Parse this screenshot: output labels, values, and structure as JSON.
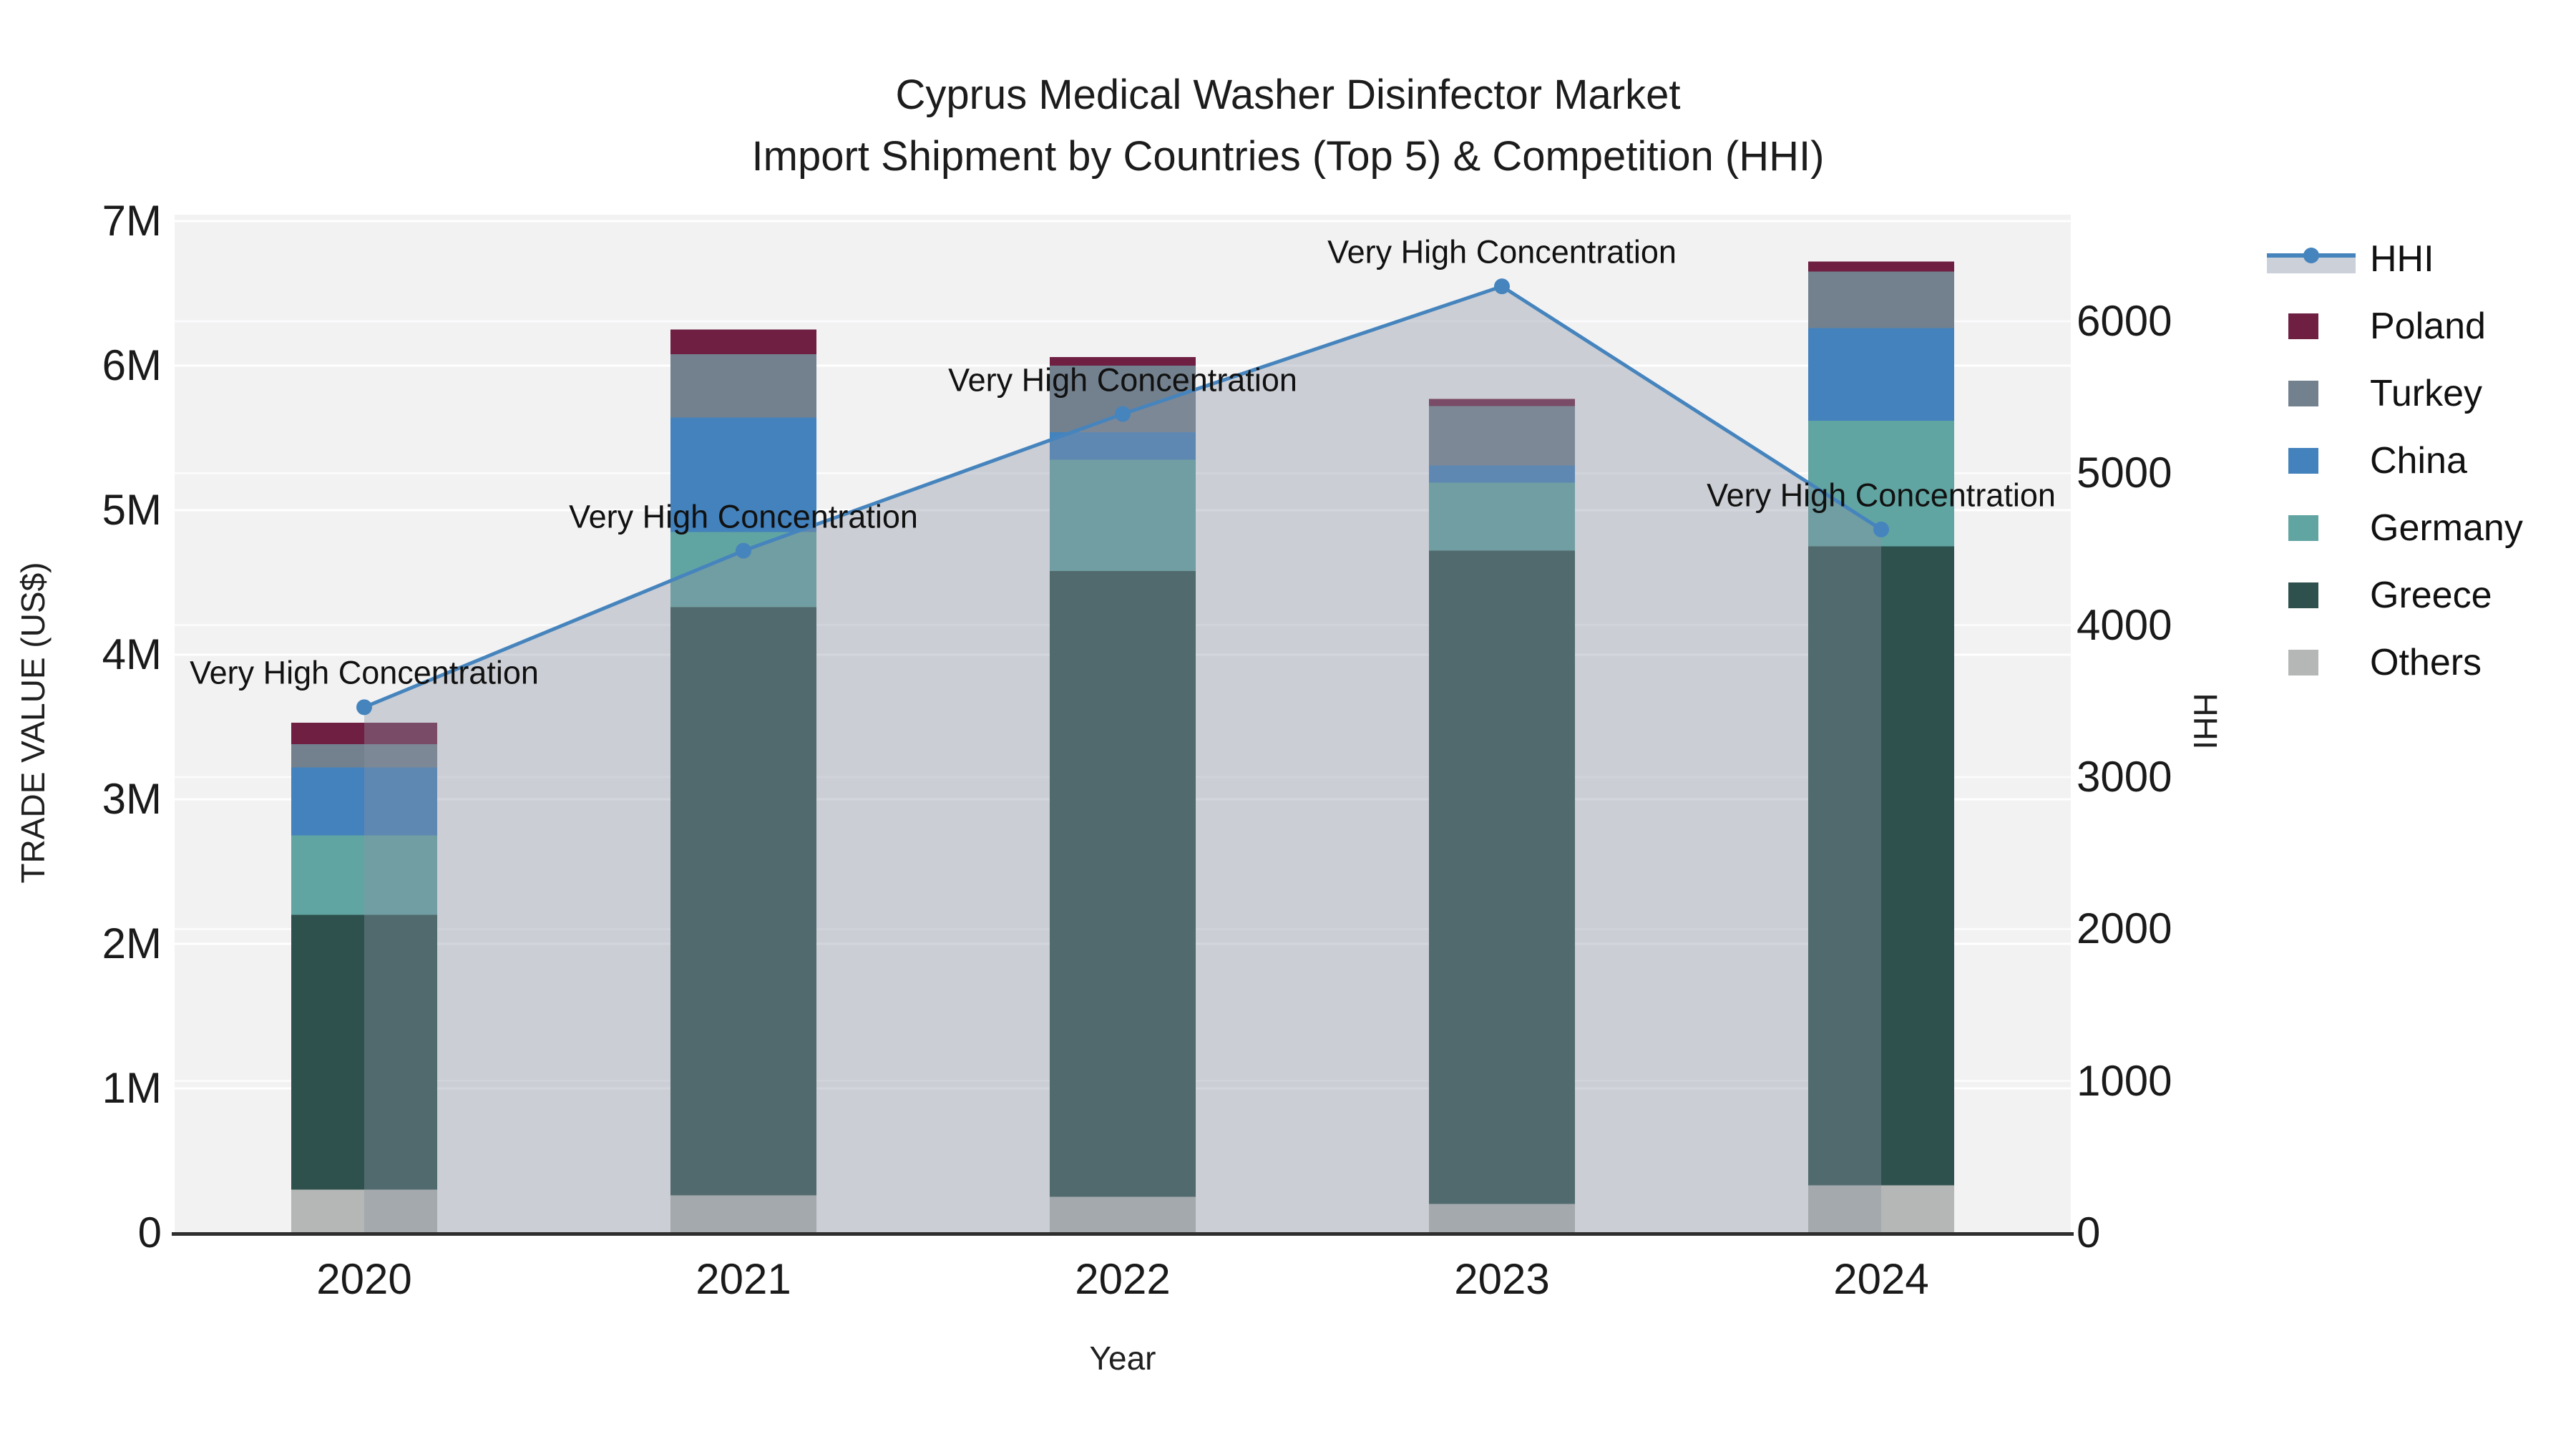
{
  "title": {
    "line1": "Cyprus Medical Washer Disinfector Market",
    "line2": "Import Shipment by Countries (Top 5) & Competition (HHI)"
  },
  "chart_data": {
    "type": "bar+line",
    "stacked": true,
    "title": "Cyprus Medical Washer Disinfector Market — Import Shipment by Countries (Top 5) & Competition (HHI)",
    "categories": [
      "2020",
      "2021",
      "2022",
      "2023",
      "2024"
    ],
    "value_unit": "US$ millions (left axis), HHI index (right axis)",
    "series": [
      {
        "name": "Others",
        "color": "#b4b7b5",
        "values": [
          0.3,
          0.26,
          0.25,
          0.2,
          0.33
        ]
      },
      {
        "name": "Greece",
        "color": "#2e514d",
        "values": [
          1.9,
          4.07,
          4.33,
          4.52,
          4.42
        ]
      },
      {
        "name": "Germany",
        "color": "#61a5a2",
        "values": [
          0.55,
          0.52,
          0.77,
          0.47,
          0.87
        ]
      },
      {
        "name": "China",
        "color": "#4382bc",
        "values": [
          0.47,
          0.79,
          0.19,
          0.12,
          0.64
        ]
      },
      {
        "name": "Turkey",
        "color": "#73818f",
        "values": [
          0.16,
          0.44,
          0.46,
          0.41,
          0.39
        ]
      },
      {
        "name": "Poland",
        "color": "#6e1f42",
        "values": [
          0.15,
          0.17,
          0.06,
          0.05,
          0.07
        ]
      }
    ],
    "bar_totals": [
      3.53,
      6.25,
      6.06,
      5.77,
      6.72
    ],
    "line_series": {
      "name": "HHI",
      "axis": "right",
      "color": "#4684bd",
      "values": [
        3460,
        4490,
        5390,
        6230,
        4630
      ],
      "area_fill": "rgba(139,147,162,0.38)",
      "annotation": "Very High Concentration"
    },
    "y_left": {
      "title": "TRADE VALUE (US$)",
      "ticks": [
        "0",
        "1M",
        "2M",
        "3M",
        "4M",
        "5M",
        "6M",
        "7M"
      ],
      "tick_values": [
        0,
        1,
        2,
        3,
        4,
        5,
        6,
        7
      ],
      "range": [
        0,
        7.05
      ]
    },
    "y_right": {
      "title": "HHI",
      "ticks": [
        "0",
        "1000",
        "2000",
        "3000",
        "4000",
        "5000",
        "6000"
      ],
      "tick_values": [
        0,
        1000,
        2000,
        3000,
        4000,
        5000,
        6000
      ],
      "range": [
        0,
        6700
      ]
    },
    "x": {
      "title": "Year"
    },
    "grid": true,
    "legend_position": "top-right"
  },
  "legend": {
    "items": [
      {
        "label": "HHI",
        "type": "line",
        "color": "#4684bd"
      },
      {
        "label": "Poland",
        "type": "swatch",
        "color": "#6e1f42"
      },
      {
        "label": "Turkey",
        "type": "swatch",
        "color": "#73818f"
      },
      {
        "label": "China",
        "type": "swatch",
        "color": "#4382bc"
      },
      {
        "label": "Germany",
        "type": "swatch",
        "color": "#61a5a2"
      },
      {
        "label": "Greece",
        "type": "swatch",
        "color": "#2e514d"
      },
      {
        "label": "Others",
        "type": "swatch",
        "color": "#b4b7b5"
      }
    ]
  },
  "annotations": [
    "Very High Concentration",
    "Very High Concentration",
    "Very High Concentration",
    "Very High Concentration",
    "Very High Concentration"
  ],
  "colors": {
    "plot_bg": "#f2f2f3",
    "grid": "#ffffff",
    "axis_line": "#2e2e2e",
    "text": "#1a1a1a",
    "area_fill": "rgba(139,147,162,0.38)"
  }
}
